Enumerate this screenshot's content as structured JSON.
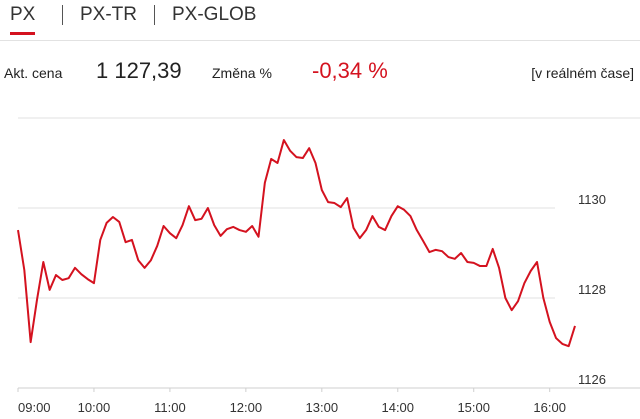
{
  "tabs": [
    "PX",
    "PX-TR",
    "PX-GLOB"
  ],
  "quote": {
    "price_label": "Akt. cena",
    "price": "1 127,39",
    "change_label": "Změna %",
    "change": "-0,34 %",
    "status": "[v reálném čase]"
  },
  "chart_data": {
    "type": "line",
    "color": "#d4121f",
    "grid": true,
    "x": [
      "09:00",
      "09:05",
      "09:10",
      "09:15",
      "09:20",
      "09:25",
      "09:30",
      "09:35",
      "09:40",
      "09:45",
      "09:50",
      "09:55",
      "10:00",
      "10:05",
      "10:10",
      "10:15",
      "10:20",
      "10:25",
      "10:30",
      "10:35",
      "10:40",
      "10:45",
      "10:50",
      "10:55",
      "11:00",
      "11:05",
      "11:10",
      "11:15",
      "11:20",
      "11:25",
      "11:30",
      "11:35",
      "11:40",
      "11:45",
      "11:50",
      "11:55",
      "12:00",
      "12:05",
      "12:10",
      "12:15",
      "12:20",
      "12:25",
      "12:30",
      "12:35",
      "12:40",
      "12:45",
      "12:50",
      "12:55",
      "13:00",
      "13:05",
      "13:10",
      "13:15",
      "13:20",
      "13:25",
      "13:30",
      "13:35",
      "13:40",
      "13:45",
      "13:50",
      "13:55",
      "14:00",
      "14:05",
      "14:10",
      "14:15",
      "14:20",
      "14:25",
      "14:30",
      "14:35",
      "14:40",
      "14:45",
      "14:50",
      "14:55",
      "15:00",
      "15:05",
      "15:10",
      "15:15",
      "15:20",
      "15:25",
      "15:30",
      "15:35",
      "15:40",
      "15:45",
      "15:50",
      "15:55",
      "16:00",
      "16:05",
      "16:10",
      "16:15",
      "16:20"
    ],
    "values": [
      1129.51,
      1128.62,
      1127.02,
      1127.96,
      1128.8,
      1128.18,
      1128.51,
      1128.4,
      1128.44,
      1128.67,
      1128.53,
      1128.42,
      1128.33,
      1129.29,
      1129.67,
      1129.8,
      1129.69,
      1129.24,
      1129.29,
      1128.84,
      1128.67,
      1128.84,
      1129.16,
      1129.6,
      1129.44,
      1129.33,
      1129.62,
      1130.04,
      1129.73,
      1129.76,
      1130.0,
      1129.62,
      1129.38,
      1129.53,
      1129.58,
      1129.51,
      1129.47,
      1129.6,
      1129.36,
      1130.56,
      1131.09,
      1131.0,
      1131.51,
      1131.27,
      1131.13,
      1131.11,
      1131.33,
      1131.0,
      1130.4,
      1130.13,
      1130.11,
      1130.02,
      1130.22,
      1129.56,
      1129.33,
      1129.51,
      1129.82,
      1129.58,
      1129.51,
      1129.82,
      1130.04,
      1129.96,
      1129.82,
      1129.51,
      1129.27,
      1129.02,
      1129.07,
      1129.04,
      1128.91,
      1128.87,
      1129.0,
      1128.8,
      1128.78,
      1128.71,
      1128.71,
      1129.09,
      1128.67,
      1128.0,
      1127.73,
      1127.93,
      1128.33,
      1128.6,
      1128.8,
      1128.0,
      1127.47,
      1127.11,
      1126.98,
      1126.93,
      1127.38
    ],
    "xlim": [
      "09:00",
      "16:20"
    ],
    "xticks": [
      "09:00",
      "10:00",
      "11:00",
      "12:00",
      "13:00",
      "14:00",
      "15:00",
      "16:00"
    ],
    "ylim": [
      1126,
      1132
    ],
    "yticks": [
      1126,
      1128,
      1130
    ]
  }
}
